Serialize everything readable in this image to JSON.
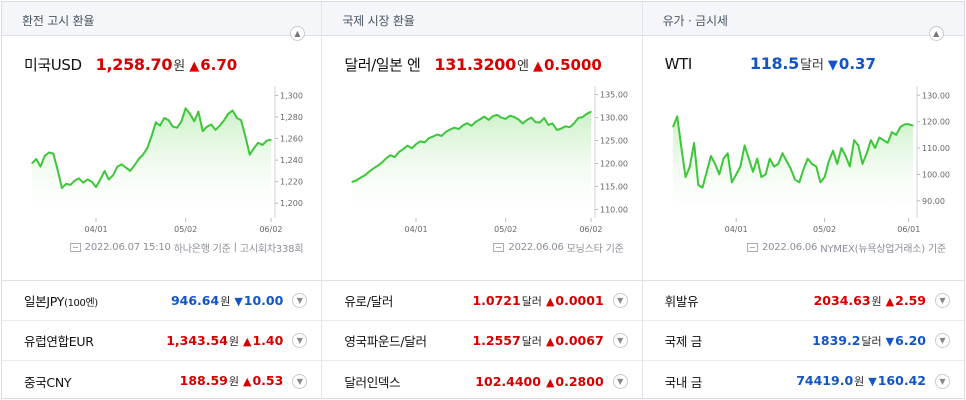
{
  "colors": {
    "up": "#d60000",
    "down": "#1255c8",
    "line": "#3ec63b",
    "fill_top": "#c9f0c4"
  },
  "panels": [
    {
      "header": "환전 고시 환율",
      "name": "미국USD",
      "price": "1,258.70",
      "unit": "원",
      "change_direction": "up",
      "change_symbol": "▲",
      "change": "6.70",
      "collapse_icon": "chevron-up-icon",
      "source_date": "2022.06.07 15:10",
      "source_provider": "하나은행 기준",
      "source_extra": "고시회차338회",
      "rows": [
        {
          "name": "일본JPY",
          "name_suffix": "(100엔)",
          "price": "946.64",
          "unit": "원",
          "dir": "down",
          "symbol": "▼",
          "change": "10.00"
        },
        {
          "name": "유럽연합EUR",
          "name_suffix": "",
          "price": "1,343.54",
          "unit": "원",
          "dir": "up",
          "symbol": "▲",
          "change": "1.40"
        },
        {
          "name": "중국CNY",
          "name_suffix": "",
          "price": "188.59",
          "unit": "원",
          "dir": "up",
          "symbol": "▲",
          "change": "0.53"
        }
      ]
    },
    {
      "header": "국제 시장 환율",
      "name": "달러/일본 엔",
      "price": "131.3200",
      "unit": "엔",
      "change_direction": "up",
      "change_symbol": "▲",
      "change": "0.5000",
      "collapse_icon": "chevron-up-icon",
      "source_date": "2022.06.06",
      "source_provider": "모닝스타 기준",
      "source_extra": "",
      "rows": [
        {
          "name": "유로/달러",
          "name_suffix": "",
          "price": "1.0721",
          "unit": "달러",
          "dir": "up",
          "symbol": "▲",
          "change": "0.0001"
        },
        {
          "name": "영국파운드/달러",
          "name_suffix": "",
          "price": "1.2557",
          "unit": "달러",
          "dir": "up",
          "symbol": "▲",
          "change": "0.0067"
        },
        {
          "name": "달러인덱스",
          "name_suffix": "",
          "price": "102.4400",
          "unit": "",
          "dir": "up",
          "symbol": "▲",
          "change": "0.2800"
        }
      ]
    },
    {
      "header": "유가 · 금시세",
      "name": "WTI",
      "price": "118.5",
      "unit": "달러",
      "change_direction": "down",
      "change_symbol": "▼",
      "change": "0.37",
      "collapse_icon": "chevron-up-icon",
      "source_date": "2022.06.06",
      "source_provider": "NYMEX(뉴욕상업거래소) 기준",
      "source_extra": "",
      "rows": [
        {
          "name": "휘발유",
          "name_suffix": "",
          "price": "2034.63",
          "unit": "원",
          "dir": "up",
          "symbol": "▲",
          "change": "2.59"
        },
        {
          "name": "국제 금",
          "name_suffix": "",
          "price": "1839.2",
          "unit": "달러",
          "dir": "down",
          "symbol": "▼",
          "change": "6.20"
        },
        {
          "name": "국내 금",
          "name_suffix": "",
          "price": "74419.0",
          "unit": "원",
          "dir": "down",
          "symbol": "▼",
          "change": "160.42"
        }
      ]
    }
  ],
  "chart_data": [
    {
      "type": "area",
      "title": "미국USD",
      "x_ticks": [
        "04/01",
        "05/02",
        "06/02"
      ],
      "y_ticks": [
        "1,300",
        "1,280",
        "1,260",
        "1,240",
        "1,220",
        "1,200"
      ],
      "ylim": [
        1190,
        1305
      ],
      "x_tick_index": [
        15,
        36,
        56
      ],
      "values": [
        1237,
        1241,
        1234,
        1244,
        1247,
        1246,
        1231,
        1214,
        1218,
        1217,
        1221,
        1223,
        1219,
        1222,
        1220,
        1215,
        1222,
        1230,
        1222,
        1226,
        1234,
        1236,
        1233,
        1230,
        1235,
        1241,
        1245,
        1251,
        1262,
        1275,
        1272,
        1279,
        1277,
        1271,
        1270,
        1276,
        1288,
        1283,
        1276,
        1285,
        1267,
        1271,
        1273,
        1268,
        1272,
        1277,
        1283,
        1286,
        1279,
        1277,
        1262,
        1245,
        1251,
        1256,
        1254,
        1258,
        1259
      ]
    },
    {
      "type": "area",
      "title": "달러/일본 엔",
      "x_ticks": [
        "04/01",
        "05/02",
        "06/02"
      ],
      "y_ticks": [
        "135.00",
        "130.00",
        "125.00",
        "120.00",
        "115.00",
        "110.00"
      ],
      "ylim": [
        109,
        136
      ],
      "x_tick_index": [
        15,
        36,
        56
      ],
      "values": [
        116.0,
        116.3,
        116.9,
        117.4,
        118.2,
        118.9,
        119.5,
        120.2,
        121.1,
        121.8,
        121.4,
        122.5,
        123.1,
        123.9,
        123.3,
        124.2,
        124.8,
        124.6,
        125.5,
        125.9,
        126.3,
        126.0,
        126.9,
        127.4,
        127.8,
        127.5,
        128.3,
        128.8,
        128.2,
        129.1,
        129.6,
        130.2,
        129.5,
        130.3,
        130.6,
        130.0,
        129.7,
        130.4,
        130.1,
        129.6,
        128.7,
        129.5,
        130.0,
        129.0,
        128.9,
        129.9,
        128.4,
        128.7,
        127.3,
        127.6,
        128.1,
        127.9,
        128.7,
        129.9,
        130.1,
        130.8,
        131.3
      ]
    },
    {
      "type": "area",
      "title": "WTI",
      "x_ticks": [
        "04/01",
        "05/02",
        "06/01"
      ],
      "y_ticks": [
        "130.00",
        "120.00",
        "110.00",
        "100.00",
        "90.00"
      ],
      "ylim": [
        85,
        132
      ],
      "x_tick_index": [
        15,
        36,
        56
      ],
      "values": [
        118,
        122,
        110,
        99,
        103,
        112,
        96,
        95,
        101,
        107,
        104,
        100,
        106,
        108,
        97,
        100,
        103,
        111,
        106,
        101,
        106,
        99,
        100,
        106,
        103,
        104,
        108,
        105,
        102,
        98,
        97,
        102,
        106,
        104,
        103,
        97,
        99,
        105,
        109,
        104,
        110,
        107,
        103,
        113,
        111,
        104,
        108,
        113,
        110,
        114,
        113,
        112,
        116,
        115,
        118,
        119,
        119,
        118.5
      ]
    }
  ]
}
